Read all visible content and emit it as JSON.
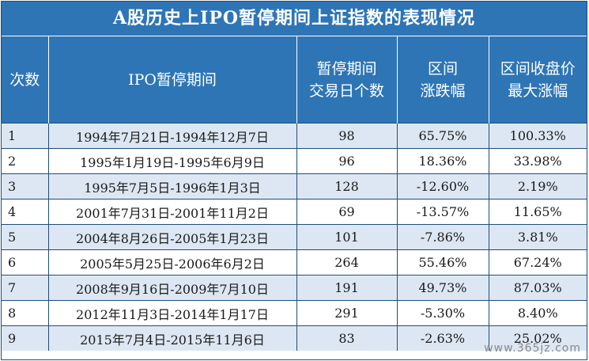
{
  "title": "A股历史上IPO暂停期间上证指数的表现情况",
  "headers": {
    "col1": "次数",
    "col2": "IPO暂停期间",
    "col3_line1": "暂停期间",
    "col3_line2": "交易日个数",
    "col4_line1": "区间",
    "col4_line2": "涨跌幅",
    "col5_line1": "区间收盘价",
    "col5_line2": "最大涨幅"
  },
  "rows": [
    {
      "n": "1",
      "period": "1994年7月21日-1994年12月7日",
      "days": "98",
      "change": "65.75%",
      "max": "100.33%"
    },
    {
      "n": "2",
      "period": "1995年1月19日-1995年6月9日",
      "days": "96",
      "change": "18.36%",
      "max": "33.98%"
    },
    {
      "n": "3",
      "period": "1995年7月5日-1996年1月3日",
      "days": "128",
      "change": "-12.60%",
      "max": "2.19%"
    },
    {
      "n": "4",
      "period": "2001年7月31日-2001年11月2日",
      "days": "69",
      "change": "-13.57%",
      "max": "11.65%"
    },
    {
      "n": "5",
      "period": "2004年8月26日-2005年1月23日",
      "days": "101",
      "change": "-7.86%",
      "max": "3.81%"
    },
    {
      "n": "6",
      "period": "2005年5月25日-2006年6月2日",
      "days": "264",
      "change": "55.46%",
      "max": "67.24%"
    },
    {
      "n": "7",
      "period": "2008年9月16日-2009年7月10日",
      "days": "191",
      "change": "49.73%",
      "max": "87.03%"
    },
    {
      "n": "8",
      "period": "2012年11月3日-2014年1月17日",
      "days": "291",
      "change": "-5.30%",
      "max": "8.40%"
    },
    {
      "n": "9",
      "period": "2015年7月4日-2015年11月6日",
      "days": "83",
      "change": "-2.63%",
      "max": "25.02%"
    }
  ],
  "watermark": "www.365jz.com"
}
